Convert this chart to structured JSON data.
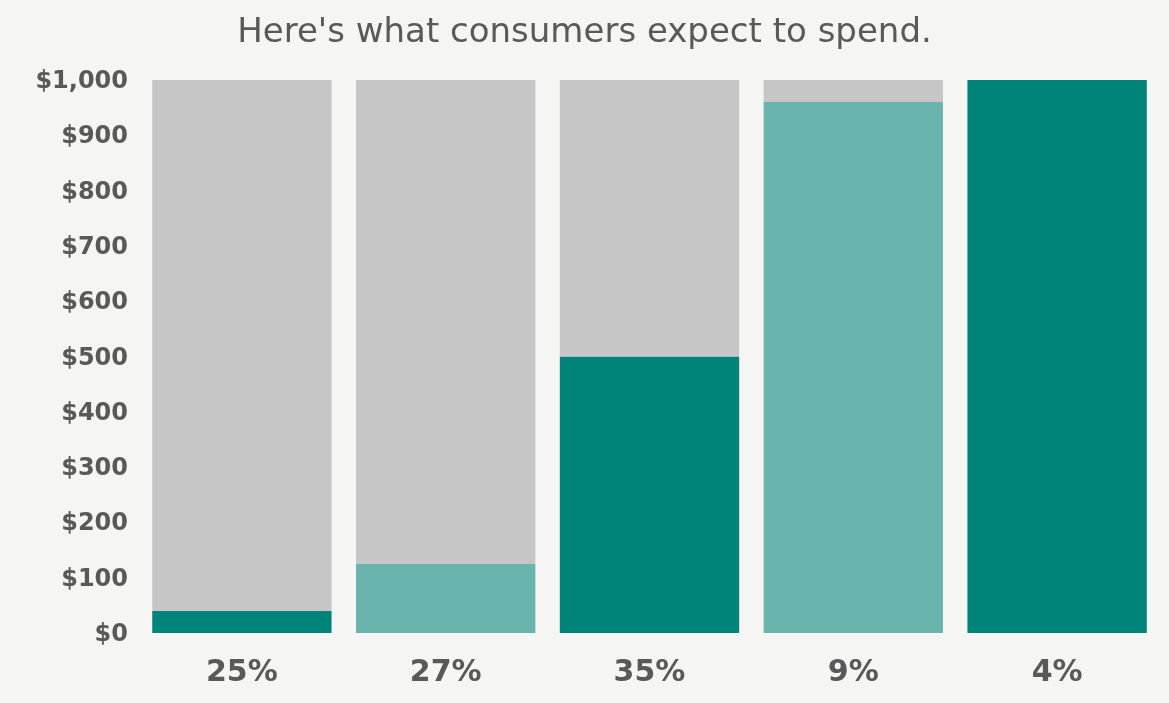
{
  "chart_data": {
    "type": "bar",
    "title": "Here's what consumers expect to spend.",
    "categories": [
      "25%",
      "27%",
      "35%",
      "9%",
      "4%"
    ],
    "stacked": true,
    "series": [
      {
        "colors": [
          "#00847a",
          "#6ab4ae",
          "#00847a",
          "#6ab4ae",
          "#00847a"
        ],
        "values": [
          40,
          125,
          500,
          960,
          1000
        ]
      },
      {
        "color": "#c6c6c6",
        "values": [
          960,
          875,
          500,
          40,
          0
        ]
      }
    ],
    "ylim": [
      0,
      1000
    ],
    "yticks": [
      {
        "value": 0,
        "label": "$0"
      },
      {
        "value": 100,
        "label": "$100"
      },
      {
        "value": 200,
        "label": "$200"
      },
      {
        "value": 300,
        "label": "$300"
      },
      {
        "value": 400,
        "label": "$400"
      },
      {
        "value": 500,
        "label": "$500"
      },
      {
        "value": 600,
        "label": "$600"
      },
      {
        "value": 700,
        "label": "$700"
      },
      {
        "value": 800,
        "label": "$800"
      },
      {
        "value": 900,
        "label": "$900"
      },
      {
        "value": 1000,
        "label": "$1,000"
      }
    ],
    "grid": false
  }
}
